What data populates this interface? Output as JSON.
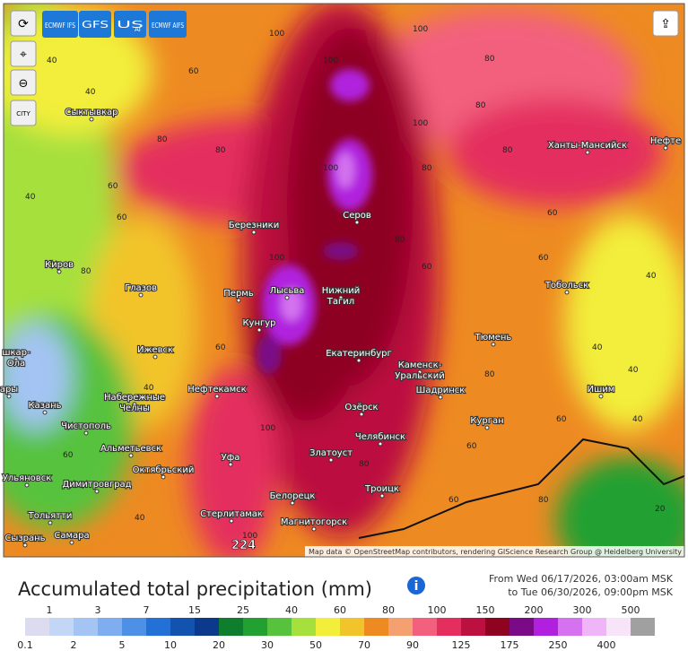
{
  "buttons": {
    "models": [
      "ECMWF IFS",
      "GFS",
      "US",
      "ECMWF AIFS"
    ],
    "us_sub": "AI",
    "city": "CITY"
  },
  "map": {
    "cities": [
      [
        "Сыктывкар"
      ],
      [
        "Ханты-Мансийск"
      ],
      [
        "Нефте"
      ],
      [
        "Березники"
      ],
      [
        "Серов"
      ],
      [
        "Киров"
      ],
      [
        "Глазов"
      ],
      [
        "Пермь"
      ],
      [
        "Лысьва"
      ],
      [
        "Нижний",
        "Тагил"
      ],
      [
        "Кунгур"
      ],
      [
        "Тобольск"
      ],
      [
        "Тюмень"
      ],
      [
        "Ижевск"
      ],
      [
        "Екатеринбург"
      ],
      [
        "Каменск-",
        "Уральский"
      ],
      [
        "Нефтекамск"
      ],
      [
        "Набережные",
        "Челны"
      ],
      [
        "Шадринск"
      ],
      [
        "Ишим"
      ],
      [
        "Казань"
      ],
      [
        "Чистополь"
      ],
      [
        "Озёрск"
      ],
      [
        "Курган"
      ],
      [
        "Альметьевск"
      ],
      [
        "Челябинск"
      ],
      [
        "Октябрьский"
      ],
      [
        "Златоуст"
      ],
      [
        "Уфа"
      ],
      [
        "Ульяновск"
      ],
      [
        "Димитровград"
      ],
      [
        "Троицк"
      ],
      [
        "Белорецк"
      ],
      [
        "Тольятти"
      ],
      [
        "Стерлитамак"
      ],
      [
        "Магнитогорск"
      ],
      [
        "Сызрань"
      ],
      [
        "Самара"
      ],
      [
        "шкар-",
        "Ола"
      ],
      [
        "ары"
      ]
    ],
    "contours": [
      "40",
      "60",
      "80",
      "100",
      "40",
      "60",
      "80",
      "100",
      "100",
      "80",
      "60",
      "40",
      "40",
      "60",
      "80",
      "100",
      "80",
      "60",
      "40",
      "60",
      "80",
      "100",
      "100",
      "80",
      "60",
      "40",
      "60",
      "80",
      "100",
      "80",
      "60",
      "40",
      "20",
      "40",
      "60",
      "80",
      "100",
      "80",
      "60",
      "40"
    ],
    "max_label": "224",
    "attribution": "Map data © OpenStreetMap contributors, rendering GIScience Research Group @ Heidelberg University"
  },
  "title": "Accumulated total precipitation (mm)",
  "period": [
    "From Wed 06/17/2026, 03:00am MSK",
    "to Tue 06/30/2026, 09:00pm MSK"
  ],
  "legend": [
    {
      "label": "0.1",
      "color": "#dcdcf0"
    },
    {
      "label": "1",
      "color": "#c4d6f6"
    },
    {
      "label": "2",
      "color": "#a4c4f4"
    },
    {
      "label": "3",
      "color": "#7eaef0"
    },
    {
      "label": "5",
      "color": "#4e90e6"
    },
    {
      "label": "7",
      "color": "#2370d6"
    },
    {
      "label": "10",
      "color": "#1452b0"
    },
    {
      "label": "15",
      "color": "#0b3a8c"
    },
    {
      "label": "20",
      "color": "#0e7e2e"
    },
    {
      "label": "25",
      "color": "#22a032"
    },
    {
      "label": "30",
      "color": "#56c23e"
    },
    {
      "label": "40",
      "color": "#a6e03c"
    },
    {
      "label": "50",
      "color": "#f2ee3a"
    },
    {
      "label": "60",
      "color": "#f2c42c"
    },
    {
      "label": "70",
      "color": "#ee8a22"
    },
    {
      "label": "80",
      "color": "#f4a070"
    },
    {
      "label": "90",
      "color": "#f2607e"
    },
    {
      "label": "100",
      "color": "#e42e5e"
    },
    {
      "label": "125",
      "color": "#bc1040"
    },
    {
      "label": "150",
      "color": "#8e0420"
    },
    {
      "label": "175",
      "color": "#7a0a86"
    },
    {
      "label": "200",
      "color": "#b020de"
    },
    {
      "label": "250",
      "color": "#d472f0"
    },
    {
      "label": "300",
      "color": "#f0b4f8"
    },
    {
      "label": "400",
      "color": "#f8e4f8"
    },
    {
      "label": "500",
      "color": "#a0a0a0"
    }
  ]
}
